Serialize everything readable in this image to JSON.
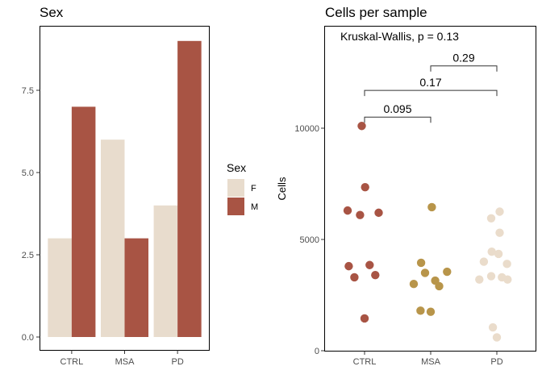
{
  "chart_data": [
    {
      "type": "bar",
      "title": "Sex",
      "categories": [
        "CTRL",
        "MSA",
        "PD"
      ],
      "series": [
        {
          "name": "F",
          "values": [
            3,
            6,
            4
          ]
        },
        {
          "name": "M",
          "values": [
            7,
            3,
            9
          ]
        }
      ],
      "colors": {
        "F": "#e8dccd",
        "M": "#a85444"
      },
      "ylim": [
        0,
        9
      ],
      "yticks": [
        "0.0",
        "2.5",
        "5.0",
        "7.5"
      ],
      "ytick_values": [
        0,
        2.5,
        5,
        7.5
      ],
      "legend": {
        "title": "Sex",
        "entries": [
          "F",
          "M"
        ],
        "placement": "right"
      },
      "grid": false
    },
    {
      "type": "scatter",
      "title": "Cells per sample",
      "ylabel": "Cells",
      "categories": [
        "CTRL",
        "MSA",
        "PD"
      ],
      "ylim": [
        0,
        14000
      ],
      "yticks": [
        "0",
        "5000",
        "10000"
      ],
      "ytick_values": [
        0,
        5000,
        10000
      ],
      "series": [
        {
          "category": "CTRL",
          "color": "#a85444",
          "points": [
            {
              "jitter": -0.05,
              "y": 10100
            },
            {
              "jitter": 0.01,
              "y": 7350
            },
            {
              "jitter": -0.3,
              "y": 6300
            },
            {
              "jitter": -0.08,
              "y": 6100
            },
            {
              "jitter": 0.25,
              "y": 6200
            },
            {
              "jitter": -0.28,
              "y": 3800
            },
            {
              "jitter": 0.09,
              "y": 3850
            },
            {
              "jitter": -0.18,
              "y": 3300
            },
            {
              "jitter": 0.19,
              "y": 3400
            },
            {
              "jitter": 0.0,
              "y": 1450
            }
          ]
        },
        {
          "category": "MSA",
          "color": "#b8954a",
          "points": [
            {
              "jitter": 0.02,
              "y": 6450
            },
            {
              "jitter": -0.17,
              "y": 3950
            },
            {
              "jitter": -0.1,
              "y": 3500
            },
            {
              "jitter": 0.29,
              "y": 3550
            },
            {
              "jitter": 0.08,
              "y": 3150
            },
            {
              "jitter": 0.15,
              "y": 2900
            },
            {
              "jitter": -0.3,
              "y": 3000
            },
            {
              "jitter": -0.18,
              "y": 1800
            },
            {
              "jitter": 0.0,
              "y": 1750
            }
          ]
        },
        {
          "category": "PD",
          "color": "#eadccb",
          "points": [
            {
              "jitter": 0.05,
              "y": 6250
            },
            {
              "jitter": -0.1,
              "y": 5950
            },
            {
              "jitter": 0.05,
              "y": 5300
            },
            {
              "jitter": -0.09,
              "y": 4450
            },
            {
              "jitter": 0.03,
              "y": 4350
            },
            {
              "jitter": -0.23,
              "y": 4000
            },
            {
              "jitter": 0.18,
              "y": 3900
            },
            {
              "jitter": -0.1,
              "y": 3350
            },
            {
              "jitter": 0.09,
              "y": 3300
            },
            {
              "jitter": 0.19,
              "y": 3200
            },
            {
              "jitter": -0.31,
              "y": 3200
            },
            {
              "jitter": -0.07,
              "y": 1050
            },
            {
              "jitter": 0.0,
              "y": 600
            }
          ]
        }
      ],
      "annotations": [
        {
          "text": "Kruskal-Wallis, p = 0.13",
          "position": "top-left"
        }
      ],
      "comparisons": [
        {
          "from": "CTRL",
          "to": "MSA",
          "y": 10500,
          "label": "0.095"
        },
        {
          "from": "CTRL",
          "to": "PD",
          "y": 11700,
          "label": "0.17"
        },
        {
          "from": "MSA",
          "to": "PD",
          "y": 12800,
          "label": "0.29"
        }
      ],
      "grid": false
    }
  ]
}
